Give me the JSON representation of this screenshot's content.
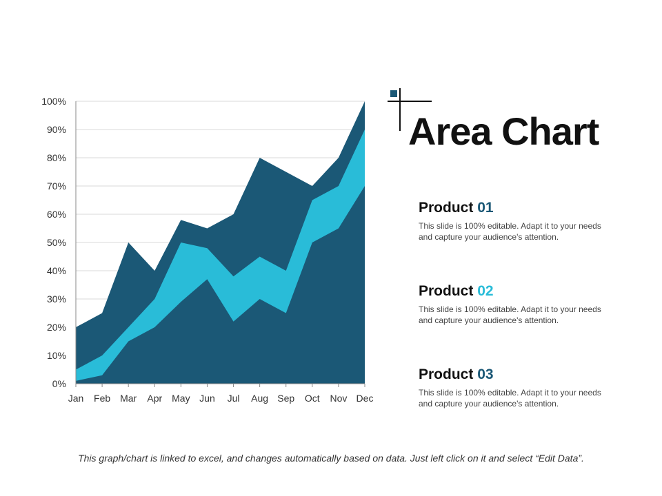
{
  "title": "Area Chart",
  "colors": {
    "dark": "#1b5876",
    "light": "#29bcd8",
    "accent_square": "#1b5876"
  },
  "products": [
    {
      "name": "Product",
      "number": "01",
      "number_color": "#1b5876",
      "description_line1": "This slide is 100% editable. Adapt it to your needs",
      "description_line2": "and capture your audience's attention."
    },
    {
      "name": "Product",
      "number": "02",
      "number_color": "#29bcd8",
      "description_line1": "This slide is 100% editable. Adapt it to your needs",
      "description_line2": "and capture your audience's attention."
    },
    {
      "name": "Product",
      "number": "03",
      "number_color": "#1b5876",
      "description_line1": "This slide is 100% editable. Adapt it to your needs",
      "description_line2": "and capture your audience's attention."
    }
  ],
  "footer": "This graph/chart is linked to excel, and changes automatically based on data. Just left click on it and select “Edit Data”.",
  "chart_data": {
    "type": "area",
    "categories": [
      "Jan",
      "Feb",
      "Mar",
      "Apr",
      "May",
      "Jun",
      "Jul",
      "Aug",
      "Sep",
      "Oct",
      "Nov",
      "Dec"
    ],
    "y_ticks": [
      "0%",
      "10%",
      "20%",
      "30%",
      "40%",
      "50%",
      "60%",
      "70%",
      "80%",
      "90%",
      "100%"
    ],
    "ylim": [
      0,
      100
    ],
    "grid": true,
    "legend": "none",
    "series": [
      {
        "color": "#1b5876",
        "values": [
          20,
          25,
          50,
          40,
          58,
          55,
          60,
          80,
          75,
          70,
          80,
          100
        ]
      },
      {
        "color": "#29bcd8",
        "values": [
          5,
          10,
          20,
          30,
          50,
          48,
          38,
          45,
          40,
          65,
          70,
          90
        ]
      },
      {
        "color": "#1b5876",
        "values": [
          1,
          3,
          15,
          20,
          29,
          37,
          22,
          30,
          25,
          50,
          55,
          70
        ]
      }
    ]
  }
}
